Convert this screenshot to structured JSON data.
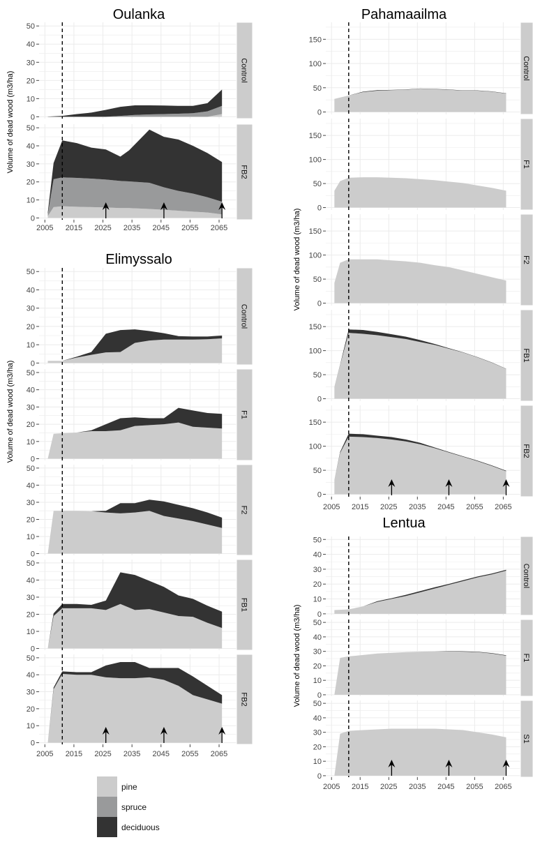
{
  "colors": {
    "pine": "#cccccc",
    "spruce": "#999a9b",
    "deciduous": "#333333",
    "grid": "#ebebeb",
    "strip": "#cccccc"
  },
  "legend": [
    {
      "label": "pine",
      "color": "#cccccc"
    },
    {
      "label": "spruce",
      "color": "#999a9b"
    },
    {
      "label": "deciduous",
      "color": "#333333"
    }
  ],
  "chart_data": [
    {
      "type": "area",
      "title": "Oulanka",
      "ylabel": "Volume of dead wood (m3/ha)",
      "x_ticks": [
        2005,
        2015,
        2025,
        2035,
        2045,
        2055,
        2065
      ],
      "xlim": [
        2003,
        2071
      ],
      "ylim": [
        -1,
        52
      ],
      "y_ticks": [
        0,
        10,
        20,
        30,
        40,
        50
      ],
      "cut_year": 2011,
      "panels": [
        {
          "strip": "Control",
          "x": [
            2006,
            2011,
            2016,
            2021,
            2026,
            2031,
            2036,
            2041,
            2046,
            2051,
            2056,
            2061,
            2066
          ],
          "pine": [
            0,
            0,
            0,
            0,
            0,
            0,
            0,
            0,
            0,
            0,
            0,
            0,
            1.5
          ],
          "spruce": [
            0,
            0,
            0,
            0,
            0,
            0.5,
            1,
            1.3,
            1.5,
            1.7,
            2,
            3,
            4.5
          ],
          "deciduous": [
            0.1,
            0.5,
            1.5,
            2.3,
            3.8,
            5,
            5.3,
            5,
            4.7,
            4.3,
            4,
            4.5,
            9
          ]
        },
        {
          "strip": "FB2",
          "x": [
            2006,
            2008,
            2011,
            2016,
            2021,
            2026,
            2031,
            2034,
            2041,
            2046,
            2051,
            2056,
            2061,
            2066
          ],
          "pine": [
            1,
            6,
            6.5,
            6.2,
            6,
            5.8,
            5.5,
            5.5,
            5,
            4.5,
            4,
            3.5,
            3,
            2
          ],
          "spruce": [
            1,
            15.5,
            16,
            16,
            15.8,
            15.5,
            15,
            14.8,
            14.5,
            12.5,
            11,
            10,
            8.5,
            7
          ],
          "deciduous": [
            1,
            9,
            20.5,
            19.3,
            17.2,
            16.7,
            13.5,
            17.2,
            29.5,
            28,
            28.5,
            26.5,
            24.5,
            22
          ]
        }
      ],
      "arrows": [
        2026,
        2046,
        2066
      ]
    },
    {
      "type": "area",
      "title": "Elimyssalo",
      "ylabel": "Volume of dead wood (m3/ha)",
      "x_ticks": [
        2005,
        2015,
        2025,
        2035,
        2045,
        2055,
        2065
      ],
      "xlim": [
        2003,
        2071
      ],
      "ylim": [
        -1,
        52
      ],
      "y_ticks": [
        0,
        10,
        20,
        30,
        40,
        50
      ],
      "cut_year": 2011,
      "panels": [
        {
          "strip": "Control",
          "x": [
            2006,
            2011,
            2016,
            2021,
            2026,
            2031,
            2036,
            2041,
            2046,
            2051,
            2056,
            2061,
            2066
          ],
          "pine": [
            1.2,
            1.2,
            3,
            4.5,
            5.8,
            6,
            11,
            12.3,
            12.8,
            12.8,
            12.8,
            13,
            13.5
          ],
          "spruce": [
            0,
            0,
            0,
            0,
            0,
            0,
            0,
            0,
            0,
            0,
            0,
            0,
            0
          ],
          "deciduous": [
            0,
            0,
            0.5,
            1.5,
            10.2,
            12,
            7.4,
            5.2,
            3.5,
            1.9,
            1.7,
            1.5,
            1.5
          ]
        },
        {
          "strip": "F1",
          "x": [
            2006,
            2008,
            2011,
            2016,
            2021,
            2026,
            2031,
            2036,
            2041,
            2046,
            2051,
            2056,
            2061,
            2066
          ],
          "pine": [
            0,
            14.5,
            14.8,
            15.2,
            16,
            16,
            16.5,
            19,
            19.5,
            20,
            21,
            18.5,
            18,
            17.5
          ],
          "spruce": [
            0,
            0,
            0,
            0,
            0,
            0,
            0,
            0,
            0,
            0,
            0,
            0,
            0,
            0
          ],
          "deciduous": [
            0,
            0,
            0,
            0,
            0.5,
            4,
            7,
            5,
            4,
            3.5,
            8.5,
            9.5,
            8.5,
            8.5
          ]
        },
        {
          "strip": "F2",
          "x": [
            2006,
            2008,
            2011,
            2016,
            2021,
            2026,
            2031,
            2036,
            2041,
            2046,
            2051,
            2056,
            2061,
            2066
          ],
          "pine": [
            0,
            25,
            25,
            25,
            24.8,
            24,
            23.5,
            24,
            25,
            22,
            20.5,
            19,
            17,
            15
          ],
          "spruce": [
            0,
            0,
            0,
            0,
            0,
            0,
            0,
            0,
            0,
            0,
            0,
            0,
            0,
            0
          ],
          "deciduous": [
            0,
            0,
            0,
            0,
            0,
            1,
            6,
            5.5,
            6.5,
            8.5,
            8,
            7.5,
            7,
            6
          ]
        },
        {
          "strip": "FB1",
          "x": [
            2006,
            2008,
            2011,
            2016,
            2021,
            2026,
            2031,
            2036,
            2041,
            2046,
            2051,
            2056,
            2061,
            2066
          ],
          "pine": [
            0,
            19,
            23.5,
            23.5,
            23.5,
            22.5,
            26,
            22.5,
            23,
            21,
            19,
            18.5,
            15,
            12
          ],
          "spruce": [
            0,
            0,
            0,
            0,
            0,
            0,
            0,
            0,
            0,
            0,
            0,
            0,
            0,
            0
          ],
          "deciduous": [
            0,
            1.5,
            2.5,
            2.5,
            2,
            5.5,
            18.5,
            20.5,
            16.5,
            15,
            12,
            10.5,
            10,
            9.5
          ]
        },
        {
          "strip": "FB2",
          "x": [
            2006,
            2008,
            2011,
            2016,
            2021,
            2026,
            2031,
            2036,
            2041,
            2046,
            2051,
            2056,
            2061,
            2066
          ],
          "pine": [
            0,
            31.5,
            40.5,
            40,
            40,
            38.5,
            38,
            38,
            38.5,
            37,
            33.5,
            28,
            25.5,
            23
          ],
          "spruce": [
            0,
            0,
            0,
            0,
            0,
            0,
            0,
            0,
            0,
            0,
            0,
            0,
            0,
            0
          ],
          "deciduous": [
            0,
            1,
            1.5,
            1.5,
            1.5,
            7,
            9.5,
            9.5,
            5.5,
            7,
            10.5,
            11,
            8,
            5
          ]
        }
      ],
      "arrows": [
        2026,
        2046,
        2066
      ]
    },
    {
      "type": "area",
      "title": "Pahamaailma",
      "ylabel": "Volume of dead wood (m3/ha)",
      "x_ticks": [
        2005,
        2015,
        2025,
        2035,
        2045,
        2055,
        2065
      ],
      "xlim": [
        2003,
        2071
      ],
      "ylim": [
        -5,
        185
      ],
      "y_ticks": [
        0,
        50,
        100,
        150
      ],
      "cut_year": 2011,
      "panels": [
        {
          "strip": "Control",
          "x": [
            2006,
            2011,
            2016,
            2021,
            2026,
            2031,
            2036,
            2041,
            2046,
            2051,
            2056,
            2061,
            2066
          ],
          "pine": [
            27,
            34,
            41,
            44,
            45,
            46,
            48,
            47,
            46,
            44,
            44,
            42,
            38
          ],
          "spruce": [
            0,
            0,
            0,
            0,
            0,
            0,
            0,
            0,
            0,
            0,
            0,
            0,
            0
          ],
          "deciduous": [
            0,
            0,
            1,
            1,
            0.5,
            0.5,
            0.5,
            0.5,
            0.5,
            0.5,
            0.5,
            0.5,
            0.5
          ]
        },
        {
          "strip": "F1",
          "x": [
            2006,
            2008,
            2011,
            2016,
            2021,
            2026,
            2031,
            2036,
            2041,
            2046,
            2051,
            2056,
            2061,
            2066
          ],
          "pine": [
            35,
            55,
            62,
            63,
            63,
            62,
            61,
            59,
            57,
            54,
            51,
            46,
            41,
            35
          ],
          "spruce": [
            0,
            0,
            0,
            0,
            0,
            0,
            0,
            0,
            0,
            0,
            0,
            0,
            0,
            0
          ],
          "deciduous": [
            0,
            0,
            0,
            0,
            0,
            0,
            0,
            0,
            0,
            0,
            0,
            0,
            0,
            0
          ]
        },
        {
          "strip": "F2",
          "x": [
            2006,
            2008,
            2011,
            2016,
            2021,
            2026,
            2031,
            2036,
            2041,
            2046,
            2051,
            2056,
            2061,
            2066
          ],
          "pine": [
            42,
            84,
            91,
            91,
            91,
            89,
            87,
            84,
            79,
            75,
            68,
            61,
            54,
            47
          ],
          "spruce": [
            0,
            0,
            0,
            0,
            0,
            0,
            0,
            0,
            0,
            0,
            0,
            0,
            0,
            0
          ],
          "deciduous": [
            0,
            0,
            0,
            0,
            0,
            0,
            0,
            0,
            0,
            0,
            0,
            0,
            0,
            0
          ]
        },
        {
          "strip": "FB1",
          "x": [
            2006,
            2008,
            2011,
            2016,
            2021,
            2026,
            2031,
            2036,
            2041,
            2046,
            2051,
            2056,
            2061,
            2066
          ],
          "pine": [
            25,
            70,
            137,
            135,
            132,
            128,
            124,
            118,
            112,
            104,
            96,
            86,
            75,
            62
          ],
          "spruce": [
            0,
            0,
            0,
            0,
            0,
            0,
            0,
            0,
            0,
            0,
            0,
            0,
            0,
            0
          ],
          "deciduous": [
            0,
            1,
            7,
            8,
            7,
            6,
            5,
            4,
            2,
            1,
            0.5,
            0.5,
            0.5,
            0.5
          ]
        },
        {
          "strip": "FB2",
          "x": [
            2006,
            2008,
            2011,
            2016,
            2021,
            2026,
            2031,
            2036,
            2041,
            2046,
            2051,
            2056,
            2061,
            2066
          ],
          "pine": [
            30,
            86,
            120,
            119,
            117,
            114,
            110,
            104,
            96,
            87,
            78,
            69,
            59,
            48
          ],
          "spruce": [
            0,
            0,
            0,
            0,
            0,
            0,
            0,
            0,
            0,
            0,
            0,
            0,
            0,
            0
          ],
          "deciduous": [
            0,
            2,
            6,
            6,
            5,
            5,
            4,
            3,
            1.5,
            1,
            1,
            1,
            1,
            1
          ]
        }
      ],
      "arrows": [
        2026,
        2046,
        2066
      ]
    },
    {
      "type": "area",
      "title": "Lentua",
      "ylabel": "Volume of dead wood (m3/ha)",
      "x_ticks": [
        2005,
        2015,
        2025,
        2035,
        2045,
        2055,
        2065
      ],
      "xlim": [
        2003,
        2071
      ],
      "ylim": [
        -1,
        52
      ],
      "y_ticks": [
        0,
        10,
        20,
        30,
        40,
        50
      ],
      "cut_year": 2011,
      "panels": [
        {
          "strip": "Control",
          "x": [
            2006,
            2011,
            2016,
            2021,
            2026,
            2031,
            2036,
            2041,
            2046,
            2051,
            2056,
            2061,
            2066
          ],
          "pine": [
            2.5,
            3,
            5,
            8,
            10,
            12,
            14.5,
            17,
            19.5,
            22,
            24.5,
            26.5,
            29
          ],
          "spruce": [
            0,
            0,
            0,
            0,
            0,
            0,
            0,
            0,
            0,
            0,
            0,
            0,
            0
          ],
          "deciduous": [
            0,
            0,
            0,
            0.5,
            0.5,
            0.8,
            0.8,
            0.8,
            0.6,
            0.6,
            0.6,
            0.6,
            0.6
          ]
        },
        {
          "strip": "F1",
          "x": [
            2006,
            2008,
            2011,
            2016,
            2021,
            2026,
            2031,
            2036,
            2041,
            2046,
            2051,
            2056,
            2061,
            2066
          ],
          "pine": [
            0,
            25.5,
            26.5,
            27.5,
            28.5,
            29,
            29.5,
            29.8,
            30,
            30,
            29.8,
            29.5,
            28.5,
            27
          ],
          "spruce": [
            0,
            0,
            0,
            0,
            0,
            0,
            0,
            0,
            0,
            0,
            0,
            0,
            0,
            0
          ],
          "deciduous": [
            0,
            0,
            0,
            0,
            0,
            0,
            0,
            0,
            0,
            0.2,
            0.2,
            0.2,
            0.3,
            0.3
          ]
        },
        {
          "strip": "S1",
          "x": [
            2006,
            2008,
            2011,
            2016,
            2021,
            2026,
            2031,
            2036,
            2041,
            2046,
            2051,
            2056,
            2061,
            2066
          ],
          "pine": [
            0,
            29,
            31,
            31.5,
            32,
            32.5,
            32.5,
            32.5,
            32.5,
            32,
            31.5,
            30,
            28.5,
            26.5
          ],
          "spruce": [
            0,
            0,
            0,
            0,
            0,
            0,
            0,
            0,
            0,
            0,
            0,
            0,
            0,
            0
          ],
          "deciduous": [
            0,
            0,
            0,
            0,
            0,
            0,
            0,
            0,
            0,
            0,
            0,
            0,
            0,
            0
          ]
        }
      ],
      "arrows": [
        2026,
        2046,
        2066
      ]
    }
  ]
}
